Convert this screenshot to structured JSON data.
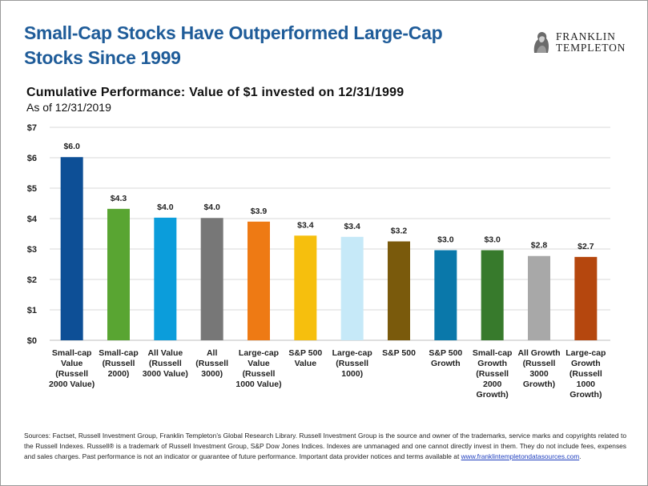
{
  "headline": "Small-Cap Stocks Have Outperformed Large-Cap Stocks Since 1999",
  "logo": {
    "line1": "FRANKLIN",
    "line2": "TEMPLETON"
  },
  "footer": {
    "text": "Sources: Factset, Russell Investment Group, Franklin Templeton’s Global Research Library. Russell Investment Group is the source and owner of the trademarks, service marks and copyrights related to the Russell Indexes. Russell® is a trademark of Russell Investment Group, S&P Dow Jones Indices. Indexes are unmanaged and one cannot directly invest in them. They do not include fees, expenses and sales charges. Past performance is not an indicator or guarantee of future performance. Important data provider notices and terms available at",
    "link": "www.franklintempletondatasources.com",
    "tail": "."
  },
  "chart_data": {
    "type": "bar",
    "title": "Cumulative Performance: Value of $1 invested on 12/31/1999",
    "subtitle": "As of 12/31/2019",
    "categories": [
      [
        "Small-cap",
        "Value",
        "(Russell",
        "2000 Value)"
      ],
      [
        "Small-cap",
        "(Russell",
        "2000)"
      ],
      [
        "All Value",
        "(Russell",
        "3000 Value)"
      ],
      [
        "All",
        "(Russell",
        "3000)"
      ],
      [
        "Large-cap",
        "Value",
        "(Russell",
        "1000 Value)"
      ],
      [
        "S&P 500",
        "Value"
      ],
      [
        "Large-cap",
        "(Russell",
        "1000)"
      ],
      [
        "S&P 500"
      ],
      [
        "S&P 500",
        "Growth"
      ],
      [
        "Small-cap",
        "Growth",
        "(Russell",
        "2000",
        "Growth)"
      ],
      [
        "All Growth",
        "(Russell",
        "3000",
        "Growth)"
      ],
      [
        "Large-cap",
        "Growth",
        "(Russell",
        "1000",
        "Growth)"
      ]
    ],
    "values": [
      6.02,
      4.32,
      4.03,
      4.02,
      3.9,
      3.44,
      3.4,
      3.25,
      2.96,
      2.96,
      2.77,
      2.74
    ],
    "data_labels": [
      "$6.0",
      "$4.3",
      "$4.0",
      "$4.0",
      "$3.9",
      "$3.4",
      "$3.4",
      "$3.2",
      "$3.0",
      "$3.0",
      "$2.8",
      "$2.7"
    ],
    "colors": [
      "#0d4f96",
      "#59a532",
      "#0b9ddb",
      "#777777",
      "#ee7a14",
      "#f6bf0d",
      "#c6e9f8",
      "#7a5a0c",
      "#0a78aa",
      "#377a2c",
      "#a8a8a8",
      "#b5470e"
    ],
    "ylim": [
      0,
      7
    ],
    "yticks": [
      "$0",
      "$1",
      "$2",
      "$3",
      "$4",
      "$5",
      "$6",
      "$7"
    ],
    "grid": true,
    "xlabel": "",
    "ylabel": ""
  }
}
